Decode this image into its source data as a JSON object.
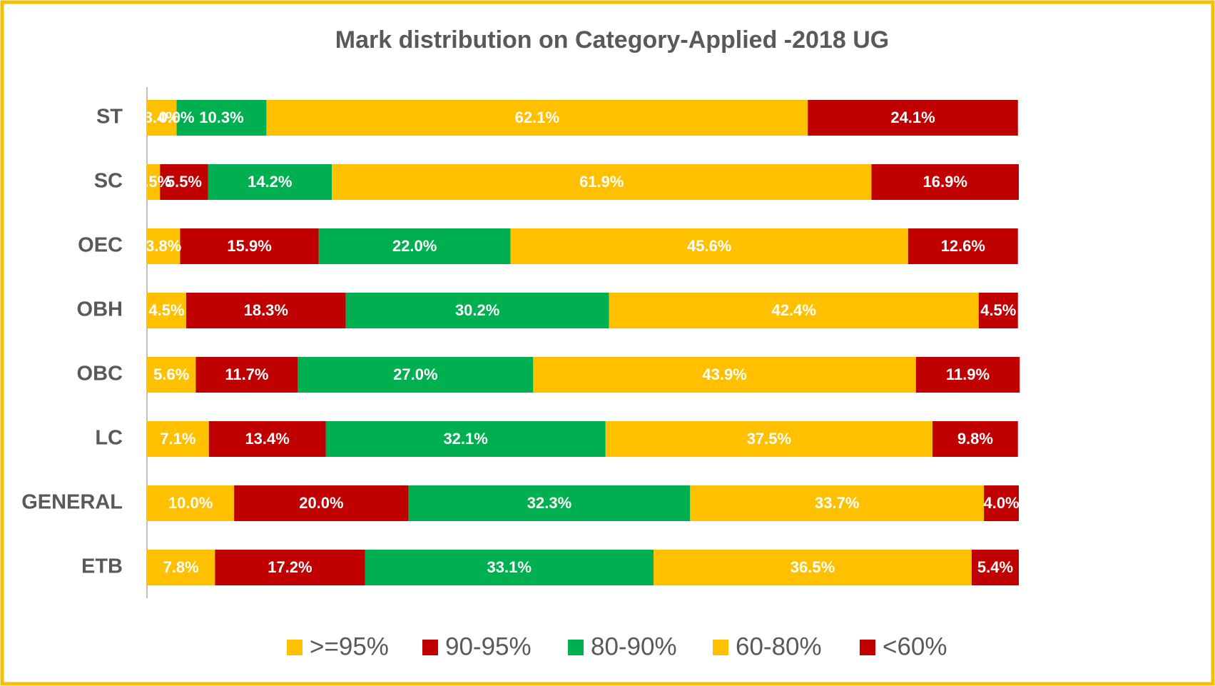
{
  "chart_data": {
    "type": "stacked_bar_horizontal",
    "title": "Mark distribution on Category-Applied -2018 UG",
    "categories": [
      "ST",
      "SC",
      "OEC",
      "OBH",
      "OBC",
      "LC",
      "GENERAL",
      "ETB"
    ],
    "xlim": [
      0,
      100
    ],
    "legend": "bottom",
    "series": [
      {
        "name": ">=95%",
        "color": "#FFC000",
        "values": [
          3.4,
          1.5,
          3.8,
          4.5,
          5.6,
          7.1,
          10.0,
          7.8
        ],
        "value_labels": [
          "3.4%",
          "1.5%",
          "3.8%",
          "4.5%",
          "5.6%",
          "7.1%",
          "10.0%",
          "7.8%"
        ]
      },
      {
        "name": "90-95%",
        "color": "#C00000",
        "values": [
          0.0,
          5.5,
          15.9,
          18.3,
          11.7,
          13.4,
          20.0,
          17.2
        ],
        "value_labels": [
          "0.0%",
          "5.5%",
          "15.9%",
          "18.3%",
          "11.7%",
          "13.4%",
          "20.0%",
          "17.2%"
        ]
      },
      {
        "name": "80-90%",
        "color": "#00B050",
        "values": [
          10.3,
          14.2,
          22.0,
          30.2,
          27.0,
          32.1,
          32.3,
          33.1
        ],
        "value_labels": [
          "10.3%",
          "14.2%",
          "22.0%",
          "30.2%",
          "27.0%",
          "32.1%",
          "32.3%",
          "33.1%"
        ]
      },
      {
        "name": "60-80%",
        "color": "#FFC000",
        "values": [
          62.1,
          61.9,
          45.6,
          42.4,
          43.9,
          37.5,
          33.7,
          36.5
        ],
        "value_labels": [
          "62.1%",
          "61.9%",
          "45.6%",
          "42.4%",
          "43.9%",
          "37.5%",
          "33.7%",
          "36.5%"
        ]
      },
      {
        "name": "<60%",
        "color": "#C00000",
        "values": [
          24.1,
          16.9,
          12.6,
          4.5,
          11.9,
          9.8,
          4.0,
          5.4
        ],
        "value_labels": [
          "24.1%",
          "16.9%",
          "12.6%",
          "4.5%",
          "11.9%",
          "9.8%",
          "4.0%",
          "5.4%"
        ]
      }
    ]
  }
}
